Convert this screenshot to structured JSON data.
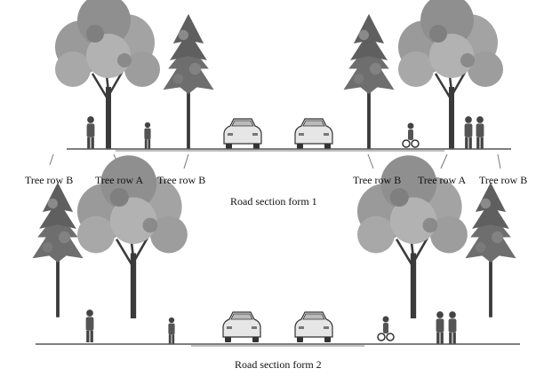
{
  "figure": {
    "section1": {
      "caption": "Road section form 1",
      "labels": [
        "Tree row B",
        "Tree row A",
        "Tree row B",
        "Tree row B",
        "Tree row A",
        "Tree row B"
      ]
    },
    "section2": {
      "caption": "Road section form 2"
    }
  },
  "colors": {
    "canopy_large": "#9a9a9a",
    "canopy_small": "#6e6e6e",
    "trunk": "#3a3a3a",
    "ground": "#555555",
    "car_body": "#e6e6e6"
  },
  "icons": [
    "large-tree",
    "small-tree",
    "pedestrian",
    "cyclist",
    "car"
  ]
}
